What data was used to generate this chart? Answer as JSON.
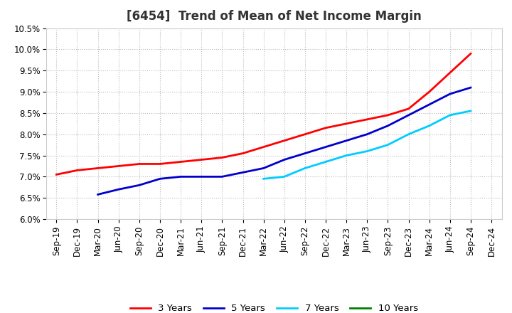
{
  "title": "[6454]  Trend of Mean of Net Income Margin",
  "ylim": [
    0.06,
    0.105
  ],
  "yticks": [
    0.06,
    0.065,
    0.07,
    0.075,
    0.08,
    0.085,
    0.09,
    0.095,
    0.1,
    0.105
  ],
  "ytick_labels": [
    "6.0%",
    "6.5%",
    "7.0%",
    "7.5%",
    "8.0%",
    "8.5%",
    "9.0%",
    "9.5%",
    "10.0%",
    "10.5%"
  ],
  "x_labels": [
    "Sep-19",
    "Dec-19",
    "Mar-20",
    "Jun-20",
    "Sep-20",
    "Dec-20",
    "Mar-21",
    "Jun-21",
    "Sep-21",
    "Dec-21",
    "Mar-22",
    "Jun-22",
    "Sep-22",
    "Dec-22",
    "Mar-23",
    "Jun-23",
    "Sep-23",
    "Dec-23",
    "Mar-24",
    "Jun-24",
    "Sep-24",
    "Dec-24"
  ],
  "series": [
    {
      "key": "3y",
      "label": "3 Years",
      "color": "#FF0000",
      "data": [
        0.0705,
        0.0715,
        0.072,
        0.0725,
        0.073,
        0.073,
        0.0735,
        0.074,
        0.0745,
        0.0755,
        0.077,
        0.0785,
        0.08,
        0.0815,
        0.0825,
        0.0835,
        0.0845,
        0.086,
        0.09,
        0.0945,
        0.099,
        null
      ]
    },
    {
      "key": "5y",
      "label": "5 Years",
      "color": "#0000CC",
      "data": [
        null,
        null,
        0.0658,
        0.067,
        0.068,
        0.0695,
        0.07,
        0.07,
        0.07,
        0.071,
        0.072,
        0.074,
        0.0755,
        0.077,
        0.0785,
        0.08,
        0.082,
        0.0845,
        0.087,
        0.0895,
        0.091,
        null
      ]
    },
    {
      "key": "7y",
      "label": "7 Years",
      "color": "#00CCFF",
      "data": [
        null,
        null,
        null,
        null,
        null,
        null,
        null,
        null,
        null,
        null,
        0.0695,
        0.07,
        0.072,
        0.0735,
        0.075,
        0.076,
        0.0775,
        0.08,
        0.082,
        0.0845,
        0.0855,
        null
      ]
    },
    {
      "key": "10y",
      "label": "10 Years",
      "color": "#008000",
      "data": [
        null,
        null,
        null,
        null,
        null,
        null,
        null,
        null,
        null,
        null,
        null,
        null,
        null,
        null,
        null,
        null,
        null,
        null,
        null,
        null,
        null,
        null
      ]
    }
  ],
  "background_color": "#ffffff",
  "grid_color": "#bbbbbb",
  "title_fontsize": 12,
  "tick_fontsize": 8.5,
  "legend_fontsize": 9.5,
  "linewidth": 2.0
}
